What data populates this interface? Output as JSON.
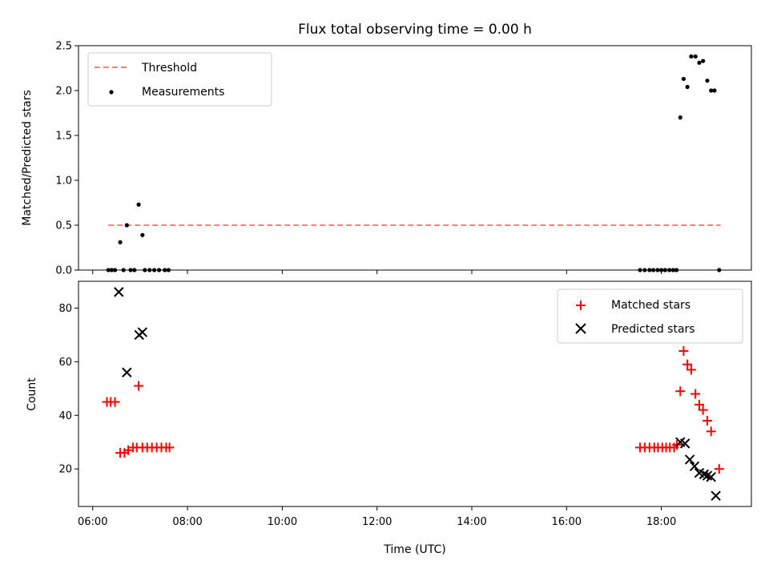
{
  "title": "Flux total observing time = 0.00 h",
  "chart_data": [
    {
      "type": "scatter",
      "ylabel": "Matched/Predicted stars",
      "ylim": [
        0,
        2.5
      ],
      "yticks": [
        "0.0",
        "0.5",
        "1.0",
        "1.5",
        "2.0",
        "2.5"
      ],
      "legend_position": "upper-left",
      "threshold": {
        "name": "Threshold",
        "value": 0.5,
        "x_range": [
          6.33,
          19.25
        ],
        "color": "#ff7f7f"
      },
      "series": [
        {
          "name": "Measurements",
          "color": "#000000",
          "marker": "dot",
          "points": [
            [
              6.33,
              0
            ],
            [
              6.4,
              0
            ],
            [
              6.47,
              0
            ],
            [
              6.58,
              0.31
            ],
            [
              6.65,
              0
            ],
            [
              6.72,
              0.5
            ],
            [
              6.8,
              0
            ],
            [
              6.88,
              0
            ],
            [
              6.97,
              0.73
            ],
            [
              7.05,
              0.39
            ],
            [
              7.1,
              0
            ],
            [
              7.2,
              0
            ],
            [
              7.3,
              0
            ],
            [
              7.4,
              0
            ],
            [
              7.52,
              0
            ],
            [
              7.6,
              0
            ],
            [
              17.55,
              0
            ],
            [
              17.65,
              0
            ],
            [
              17.75,
              0
            ],
            [
              17.83,
              0
            ],
            [
              17.92,
              0
            ],
            [
              18.0,
              0
            ],
            [
              18.08,
              0
            ],
            [
              18.17,
              0
            ],
            [
              18.25,
              0
            ],
            [
              18.32,
              0
            ],
            [
              18.4,
              1.7
            ],
            [
              18.47,
              2.13
            ],
            [
              18.55,
              2.04
            ],
            [
              18.63,
              2.38
            ],
            [
              18.72,
              2.38
            ],
            [
              18.8,
              2.31
            ],
            [
              18.88,
              2.33
            ],
            [
              18.97,
              2.11
            ],
            [
              19.05,
              2.0
            ],
            [
              19.12,
              2.0
            ],
            [
              19.22,
              0
            ]
          ]
        }
      ]
    },
    {
      "type": "scatter",
      "xlabel": "Time (UTC)",
      "ylabel": "Count",
      "xlim": [
        5.7,
        19.9
      ],
      "xticks": [
        "06:00",
        "08:00",
        "10:00",
        "12:00",
        "14:00",
        "16:00",
        "18:00"
      ],
      "ylim": [
        6,
        90
      ],
      "yticks": [
        "20",
        "40",
        "60",
        "80"
      ],
      "legend_position": "upper-right",
      "series": [
        {
          "name": "Matched stars",
          "color": "#ff0000",
          "marker": "plus",
          "points": [
            [
              6.3,
              45
            ],
            [
              6.38,
              45
            ],
            [
              6.47,
              45
            ],
            [
              6.58,
              26
            ],
            [
              6.67,
              26
            ],
            [
              6.75,
              27
            ],
            [
              6.85,
              28
            ],
            [
              6.93,
              28
            ],
            [
              6.97,
              51
            ],
            [
              7.05,
              28
            ],
            [
              7.15,
              28
            ],
            [
              7.25,
              28
            ],
            [
              7.35,
              28
            ],
            [
              7.45,
              28
            ],
            [
              7.55,
              28
            ],
            [
              7.62,
              28
            ],
            [
              17.55,
              28
            ],
            [
              17.65,
              28
            ],
            [
              17.75,
              28
            ],
            [
              17.85,
              28
            ],
            [
              17.93,
              28
            ],
            [
              18.02,
              28
            ],
            [
              18.1,
              28
            ],
            [
              18.18,
              28
            ],
            [
              18.27,
              28
            ],
            [
              18.33,
              29
            ],
            [
              18.4,
              49
            ],
            [
              18.47,
              64
            ],
            [
              18.55,
              59
            ],
            [
              18.63,
              57
            ],
            [
              18.72,
              48
            ],
            [
              18.8,
              44
            ],
            [
              18.88,
              42
            ],
            [
              18.97,
              38
            ],
            [
              19.05,
              34
            ],
            [
              19.22,
              20
            ]
          ]
        },
        {
          "name": "Predicted stars",
          "color": "#000000",
          "marker": "x",
          "points": [
            [
              6.55,
              86
            ],
            [
              6.72,
              56
            ],
            [
              6.98,
              70
            ],
            [
              7.05,
              71
            ],
            [
              18.4,
              30
            ],
            [
              18.5,
              29.5
            ],
            [
              18.6,
              23.5
            ],
            [
              18.7,
              21
            ],
            [
              18.8,
              18.5
            ],
            [
              18.9,
              18
            ],
            [
              18.97,
              17.5
            ],
            [
              19.05,
              17
            ],
            [
              19.15,
              10
            ]
          ]
        }
      ]
    }
  ]
}
